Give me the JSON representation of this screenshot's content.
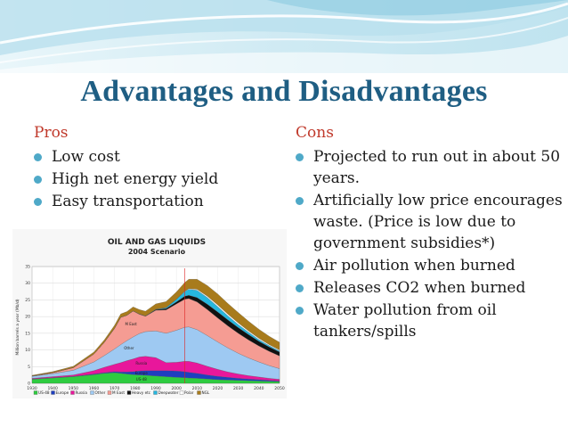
{
  "colors": {
    "title": "#1f5e83",
    "heading": "#c0392b",
    "bullet": "#4fa9c8",
    "banner_light": "#d4edf5",
    "banner_dark": "#7cc4db"
  },
  "slide": {
    "title": "Advantages and Disadvantages"
  },
  "pros": {
    "heading": "Pros",
    "items": [
      "Low cost",
      "High net energy yield",
      "Easy transportation"
    ]
  },
  "cons": {
    "heading": "Cons",
    "items": [
      "Projected to run out in about 50 years.",
      "Artificially low price encourages waste.  (Price is low due to government subsidies*)",
      "Air pollution when burned",
      "Releases CO2 when burned",
      "Water pollution from oil tankers/spills"
    ]
  },
  "chart_data": {
    "type": "area",
    "title": "OIL AND GAS LIQUIDS",
    "subtitle": "2004 Scenario",
    "ylabel": "Million barrels a year (Mb/d)",
    "xlabel": "",
    "xlim": [
      1930,
      2050
    ],
    "ylim": [
      0,
      35
    ],
    "x_ticks": [
      "1930",
      "1940",
      "1950",
      "1960",
      "1970",
      "1980",
      "1990",
      "2000",
      "2010",
      "2020",
      "2030",
      "2040",
      "2050"
    ],
    "y_ticks": [
      "0",
      "5",
      "10",
      "15",
      "20",
      "25",
      "30",
      "35"
    ],
    "grid": true,
    "legend_position": "bottom",
    "x": [
      1930,
      1940,
      1950,
      1960,
      1965,
      1970,
      1973,
      1976,
      1979,
      1982,
      1985,
      1990,
      1995,
      2000,
      2004,
      2006,
      2010,
      2015,
      2020,
      2025,
      2030,
      2035,
      2040,
      2045,
      2050
    ],
    "series": [
      {
        "name": "US-48",
        "color": "#2ecc40",
        "values": [
          1.2,
          1.6,
          2.0,
          2.6,
          3.0,
          3.2,
          3.0,
          2.8,
          2.6,
          2.5,
          2.4,
          2.2,
          2.0,
          1.8,
          1.7,
          1.6,
          1.5,
          1.3,
          1.1,
          1.0,
          0.9,
          0.8,
          0.7,
          0.6,
          0.5
        ]
      },
      {
        "name": "Europe",
        "color": "#1f3fbf",
        "values": [
          0.1,
          0.1,
          0.1,
          0.2,
          0.2,
          0.3,
          0.4,
          0.6,
          0.9,
          1.2,
          1.4,
          1.6,
          1.8,
          1.9,
          1.8,
          1.7,
          1.5,
          1.2,
          1.0,
          0.8,
          0.6,
          0.5,
          0.4,
          0.3,
          0.2
        ]
      },
      {
        "name": "Russia",
        "color": "#e8179b",
        "values": [
          0.2,
          0.3,
          0.4,
          1.0,
          1.6,
          2.2,
          2.8,
          3.4,
          3.8,
          4.2,
          4.3,
          3.9,
          2.4,
          2.6,
          3.1,
          3.3,
          3.1,
          2.6,
          2.1,
          1.6,
          1.3,
          1.0,
          0.8,
          0.6,
          0.5
        ]
      },
      {
        "name": "Other",
        "color": "#9ec9f2",
        "values": [
          0.6,
          0.9,
          1.4,
          2.6,
          3.5,
          4.6,
          5.4,
          6.0,
          6.6,
          7.0,
          7.4,
          8.0,
          8.8,
          9.6,
          10.2,
          10.3,
          10.0,
          9.2,
          8.2,
          7.2,
          6.2,
          5.3,
          4.5,
          3.8,
          3.2
        ]
      },
      {
        "name": "M East",
        "color": "#f59c93",
        "values": [
          0.1,
          0.3,
          0.8,
          2.4,
          4.0,
          6.2,
          8.2,
          7.6,
          7.8,
          5.8,
          4.6,
          6.2,
          7.0,
          7.9,
          8.4,
          8.5,
          8.3,
          7.8,
          7.2,
          6.6,
          6.0,
          5.4,
          4.8,
          4.3,
          3.8
        ]
      },
      {
        "name": "Heavy etc",
        "color": "#111111",
        "values": [
          0,
          0,
          0,
          0,
          0,
          0,
          0,
          0,
          0,
          0.1,
          0.1,
          0.2,
          0.4,
          0.6,
          0.9,
          1.0,
          1.3,
          1.6,
          1.8,
          1.8,
          1.7,
          1.6,
          1.4,
          1.3,
          1.2
        ]
      },
      {
        "name": "Deepwater",
        "color": "#26b7df",
        "values": [
          0,
          0,
          0,
          0,
          0,
          0,
          0,
          0,
          0,
          0,
          0,
          0.1,
          0.3,
          0.8,
          1.4,
          1.8,
          2.2,
          2.0,
          1.6,
          1.2,
          0.9,
          0.7,
          0.5,
          0.4,
          0.3
        ]
      },
      {
        "name": "Polar",
        "color": "#ffffff",
        "values": [
          0,
          0,
          0,
          0,
          0,
          0,
          0,
          0,
          0,
          0,
          0,
          0,
          0,
          0,
          0.1,
          0.2,
          0.3,
          0.4,
          0.5,
          0.5,
          0.5,
          0.4,
          0.4,
          0.3,
          0.3
        ]
      },
      {
        "name": "NGL",
        "color": "#a87b1c",
        "values": [
          0.2,
          0.3,
          0.4,
          0.6,
          0.7,
          0.9,
          1.0,
          1.1,
          1.2,
          1.3,
          1.4,
          1.6,
          1.8,
          2.2,
          2.6,
          2.8,
          3.0,
          3.2,
          3.3,
          3.2,
          3.1,
          2.9,
          2.7,
          2.5,
          2.3
        ]
      }
    ],
    "annotations": [
      {
        "text": "M East",
        "x": 1978,
        "series": "M East"
      },
      {
        "text": "Other",
        "x": 1977,
        "series": "Other"
      },
      {
        "text": "Russia",
        "x": 1983,
        "series": "Russia"
      },
      {
        "text": "Europe",
        "x": 1983,
        "series": "Europe"
      },
      {
        "text": "US-48",
        "x": 1983,
        "series": "US-48"
      }
    ],
    "marker_line_x": 2004
  }
}
